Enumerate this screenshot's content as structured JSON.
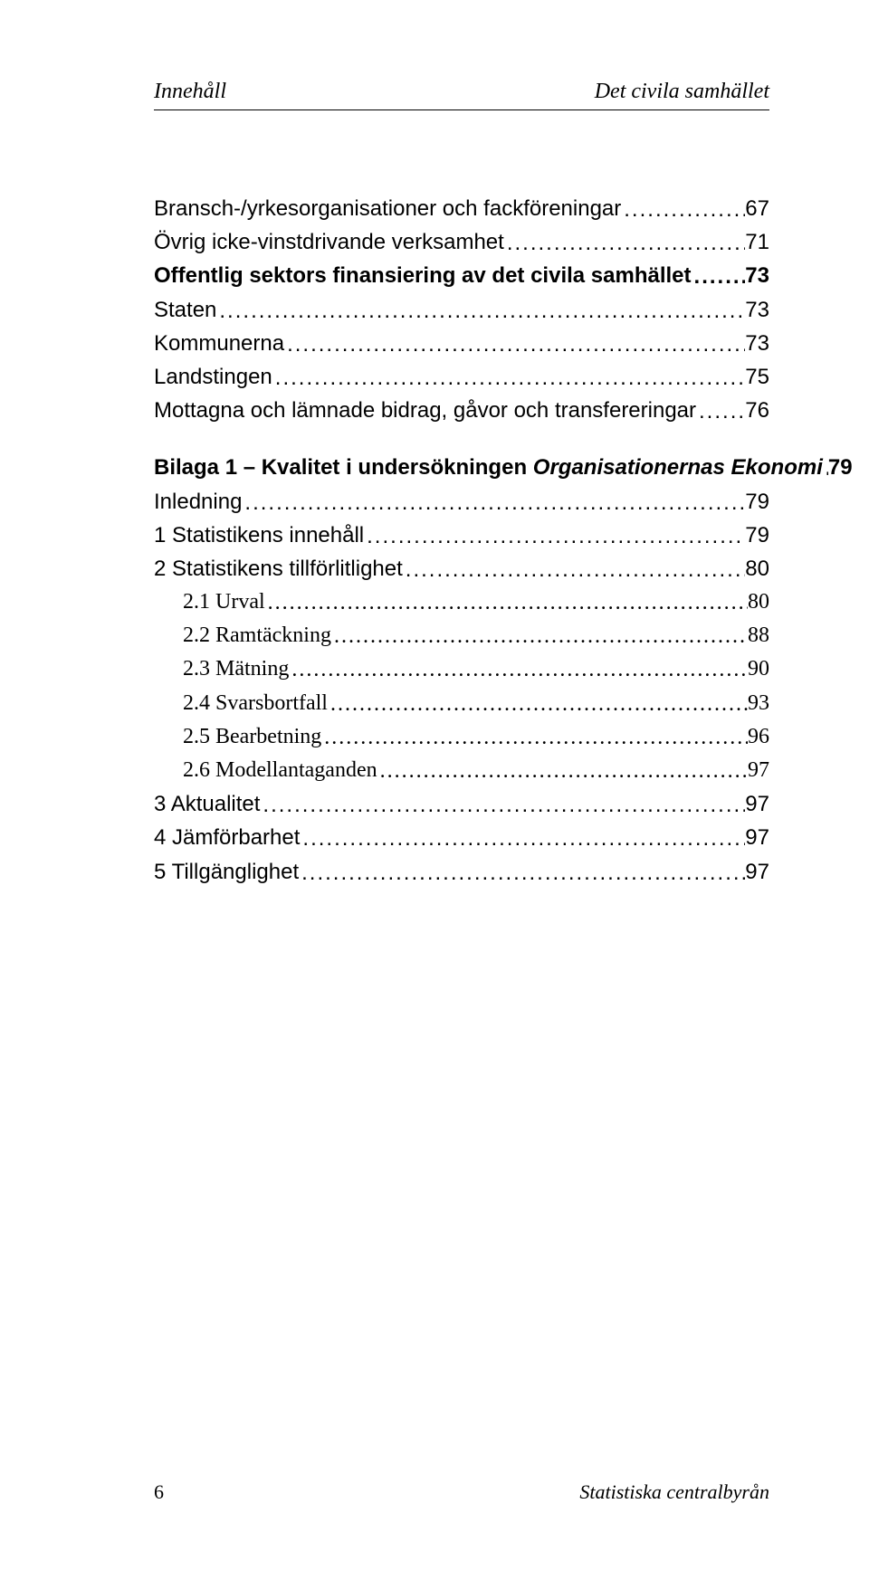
{
  "header": {
    "left": "Innehåll",
    "right": "Det civila samhället"
  },
  "toc": [
    {
      "label": "Bransch-/yrkesorganisationer och fackföreningar",
      "page": "67",
      "indent": 0,
      "font": "sans",
      "bold": false,
      "italic": false
    },
    {
      "label": "Övrig icke-vinstdrivande verksamhet",
      "page": "71",
      "indent": 0,
      "font": "sans",
      "bold": false,
      "italic": false
    },
    {
      "label": "Offentlig sektors finansiering av det civila samhället",
      "page": "73",
      "indent": 0,
      "font": "sans",
      "bold": true,
      "italic": false
    },
    {
      "label": "Staten",
      "page": "73",
      "indent": 0,
      "font": "sans",
      "bold": false,
      "italic": false
    },
    {
      "label": "Kommunerna",
      "page": "73",
      "indent": 0,
      "font": "sans",
      "bold": false,
      "italic": false
    },
    {
      "label": "Landstingen",
      "page": "75",
      "indent": 0,
      "font": "sans",
      "bold": false,
      "italic": false
    },
    {
      "label": "Mottagna och lämnade bidrag, gåvor och transfereringar",
      "page": "76",
      "indent": 0,
      "font": "sans",
      "bold": false,
      "italic": false
    }
  ],
  "bilaga_heading": {
    "prefix": "Bilaga 1 – Kvalitet i undersökningen ",
    "italic_part": "Organisationernas Ekonomi",
    "page": "79"
  },
  "toc2": [
    {
      "label": "Inledning",
      "page": "79",
      "indent": 0,
      "font": "sans",
      "bold": false
    },
    {
      "label": "1 Statistikens innehåll",
      "page": "79",
      "indent": 0,
      "font": "sans",
      "bold": false
    },
    {
      "label": "2 Statistikens tillförlitlighet",
      "page": "80",
      "indent": 0,
      "font": "sans",
      "bold": false
    },
    {
      "label": "2.1 Urval",
      "page": "80",
      "indent": 1,
      "font": "serif",
      "bold": false
    },
    {
      "label": "2.2 Ramtäckning",
      "page": "88",
      "indent": 1,
      "font": "serif",
      "bold": false
    },
    {
      "label": "2.3 Mätning",
      "page": "90",
      "indent": 1,
      "font": "serif",
      "bold": false
    },
    {
      "label": "2.4 Svarsbortfall",
      "page": "93",
      "indent": 1,
      "font": "serif",
      "bold": false
    },
    {
      "label": "2.5 Bearbetning",
      "page": "96",
      "indent": 1,
      "font": "serif",
      "bold": false
    },
    {
      "label": "2.6 Modellantaganden",
      "page": "97",
      "indent": 1,
      "font": "serif",
      "bold": false
    },
    {
      "label": "3 Aktualitet",
      "page": "97",
      "indent": 0,
      "font": "sans",
      "bold": false
    },
    {
      "label": "4 Jämförbarhet",
      "page": "97",
      "indent": 0,
      "font": "sans",
      "bold": false
    },
    {
      "label": "5 Tillgänglighet",
      "page": "97",
      "indent": 0,
      "font": "sans",
      "bold": false
    }
  ],
  "footer": {
    "page_number": "6",
    "right": "Statistiska centralbyrån"
  }
}
